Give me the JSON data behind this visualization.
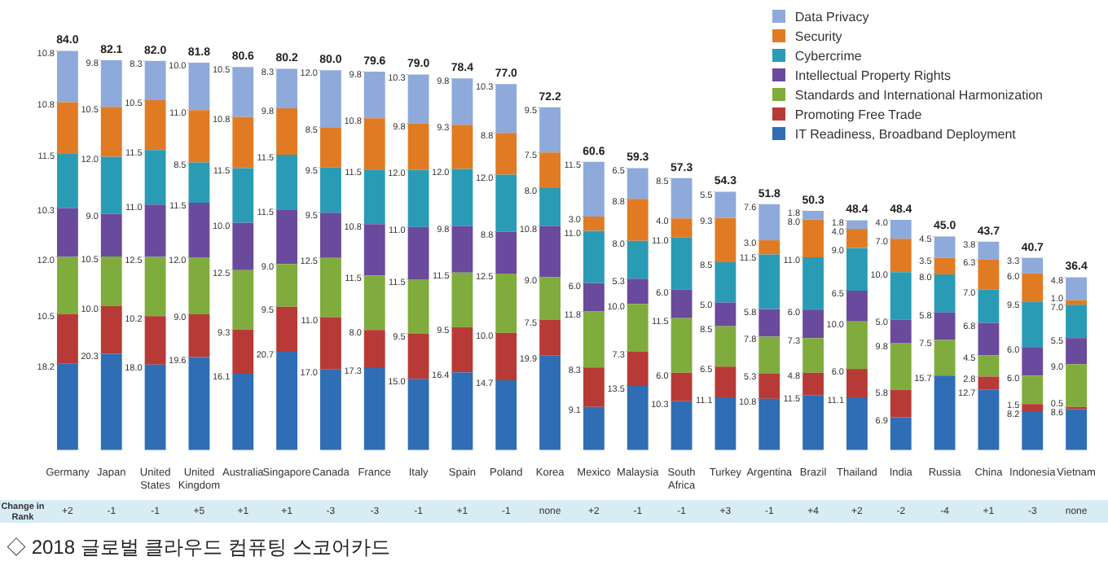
{
  "chart_data": {
    "type": "bar",
    "stacked": true,
    "legend": "top right",
    "grid": false,
    "categories": [
      "Germany",
      "Japan",
      "United States",
      "United Kingdom",
      "Australia",
      "Singapore",
      "Canada",
      "France",
      "Italy",
      "Spain",
      "Poland",
      "Korea",
      "Mexico",
      "Malaysia",
      "South Africa",
      "Turkey",
      "Argentina",
      "Brazil",
      "Thailand",
      "India",
      "Russia",
      "China",
      "Indonesia",
      "Vietnam"
    ],
    "series": [
      {
        "name": "IT Readiness, Broadband Deployment",
        "color": "#2f6db5",
        "values": [
          18.2,
          20.3,
          18.0,
          19.6,
          16.1,
          20.7,
          17.0,
          17.3,
          15.0,
          16.4,
          14.7,
          19.9,
          9.1,
          13.5,
          10.3,
          11.1,
          10.8,
          11.5,
          11.1,
          6.9,
          15.7,
          12.7,
          8.2,
          8.6
        ],
        "value_labels": [
          "18.2",
          "20.3",
          "18.0",
          "19.6",
          "16.1",
          "20.7",
          "17.0",
          "17.3",
          "15.0",
          "16.4",
          "14.7",
          "19.9",
          "9.1",
          "13.5",
          "10.3",
          "11.1",
          "10.8",
          "11.5",
          "11.1",
          "6.9",
          "15.7",
          "12.7",
          "8.2",
          "8.6"
        ]
      },
      {
        "name": "Promoting Free Trade",
        "color": "#b83a36",
        "values": [
          10.5,
          10.0,
          10.2,
          9.0,
          9.3,
          9.5,
          11.0,
          8.0,
          9.5,
          9.5,
          10.0,
          7.5,
          8.3,
          7.3,
          6.0,
          6.5,
          5.3,
          4.8,
          6.0,
          5.8,
          null,
          2.8,
          1.5,
          0.5
        ],
        "value_labels": [
          "10.5",
          "10.0",
          "10.2",
          "9.0",
          "9.3",
          "9.5",
          "11.0",
          "8.0",
          "9.5",
          "9.5",
          "10.0",
          "7.5",
          "8.3",
          "7.3",
          "6.0",
          "6.5",
          "5.3",
          "4.8",
          "6.0",
          "5.8",
          null,
          "2.8",
          "1.5",
          "0.5"
        ]
      },
      {
        "name": "Standards and International Harmonization",
        "color": "#7fac3c",
        "values": [
          12.0,
          10.5,
          12.5,
          12.0,
          12.5,
          9.0,
          12.5,
          11.5,
          11.5,
          11.5,
          12.5,
          9.0,
          11.8,
          10.0,
          11.5,
          8.5,
          7.8,
          7.3,
          10.0,
          9.8,
          7.5,
          4.5,
          6.0,
          9.0
        ],
        "value_labels": [
          "12.0",
          "10.5",
          "12.5",
          "12.0",
          "12.5",
          "9.0",
          "12.5",
          "11.5",
          "11.5",
          "11.5",
          "12.5",
          "9.0",
          "11.8",
          "10.0",
          "11.5",
          "8.5",
          "7.8",
          "7.3",
          "10.0",
          "9.8",
          "7.5",
          "4.5",
          "6.0",
          "9.0"
        ]
      },
      {
        "name": "Intellectual Property Rights",
        "color": "#6a4a9c",
        "values": [
          10.3,
          9.0,
          11.0,
          11.5,
          10.0,
          11.5,
          9.5,
          10.8,
          11.0,
          9.8,
          8.8,
          10.8,
          6.0,
          5.3,
          6.0,
          5.0,
          5.8,
          6.0,
          6.5,
          5.0,
          5.8,
          6.8,
          6.0,
          5.5
        ],
        "value_labels": [
          "10.3",
          "9.0",
          "11.0",
          "11.5",
          "10.0",
          "11.5",
          "9.5",
          "10.8",
          "11.0",
          "9.8",
          "8.8",
          "10.8",
          "6.0",
          "5.3",
          "6.0",
          "5.0",
          "5.8",
          "6.0",
          "6.5",
          "5.0",
          "5.8",
          "6.8",
          "6.0",
          "5.5"
        ]
      },
      {
        "name": "Cybercrime",
        "color": "#2a9bb5",
        "values": [
          11.5,
          12.0,
          11.5,
          8.5,
          11.5,
          11.5,
          9.5,
          11.5,
          12.0,
          12.0,
          12.0,
          8.0,
          11.0,
          8.0,
          11.0,
          8.5,
          11.5,
          11.0,
          9.0,
          10.0,
          8.0,
          7.0,
          9.5,
          7.0
        ],
        "value_labels": [
          "11.5",
          "12.0",
          "11.5",
          "8.5",
          "11.5",
          "11.5",
          "9.5",
          "11.5",
          "12.0",
          "12.0",
          "12.0",
          "8.0",
          "11.0",
          "8.0",
          "11.0",
          "8.5",
          "11.5",
          "11.0",
          "9.0",
          "10.0",
          "8.0",
          "7.0",
          "9.5",
          "7.0"
        ]
      },
      {
        "name": "Security",
        "color": "#e07b24",
        "values": [
          10.8,
          10.5,
          10.5,
          11.0,
          10.8,
          9.8,
          8.5,
          10.8,
          9.8,
          9.3,
          8.8,
          7.5,
          3.0,
          8.8,
          4.0,
          9.3,
          3.0,
          8.0,
          4.0,
          7.0,
          3.5,
          6.3,
          6.0,
          1.0
        ],
        "value_labels": [
          "10.8",
          "10.5",
          "10.5",
          "11.0",
          "10.8",
          "9.8",
          "8.5",
          "10.8",
          "9.8",
          "9.3",
          "8.8",
          "7.5",
          "3.0",
          "8.8",
          "4.0",
          "9.3",
          "3.0",
          "8.0",
          "4.0",
          "7.0",
          "3.5",
          "6.3",
          "6.0",
          "1.0"
        ]
      },
      {
        "name": "Data Privacy",
        "color": "#8eaadb",
        "values": [
          10.8,
          9.8,
          8.3,
          10.0,
          10.5,
          8.3,
          12.0,
          9.8,
          10.3,
          9.8,
          10.3,
          9.5,
          11.5,
          6.5,
          8.5,
          5.5,
          7.6,
          1.8,
          1.8,
          4.0,
          4.5,
          3.8,
          3.3,
          4.8
        ],
        "value_labels": [
          "10.8",
          "9.8",
          "8.3",
          "10.0",
          "10.5",
          "8.3",
          "12.0",
          "9.8",
          "10.3",
          "9.8",
          "10.3",
          "9.5",
          "11.5",
          "6.5",
          "8.5",
          "5.5",
          "7.6",
          "1.8",
          "1.8",
          "4.0",
          "4.5",
          "3.8",
          "3.3",
          "4.8"
        ]
      }
    ],
    "totals": [
      "84.0",
      "82.1",
      "82.0",
      "81.8",
      "80.6",
      "80.2",
      "80.0",
      "79.6",
      "79.0",
      "78.4",
      "77.0",
      "72.2",
      "60.6",
      "59.3",
      "57.3",
      "54.3",
      "51.8",
      "50.3",
      "48.4",
      "48.4",
      "45.0",
      "43.7",
      "40.7",
      "36.4"
    ],
    "annotations": [
      "Change in Rank",
      "+2",
      "-1",
      "-1",
      "+5",
      "+1",
      "+1",
      "-3",
      "-3",
      "-1",
      "+1",
      "-1",
      "none",
      "+2",
      "-1",
      "-1",
      "+3",
      "-1",
      "+4",
      "+2",
      "-2",
      "-4",
      "+1",
      "-3",
      "none",
      "◇ 2018 글로벌 클라우드 컴퓨팅 스코어카드"
    ]
  }
}
